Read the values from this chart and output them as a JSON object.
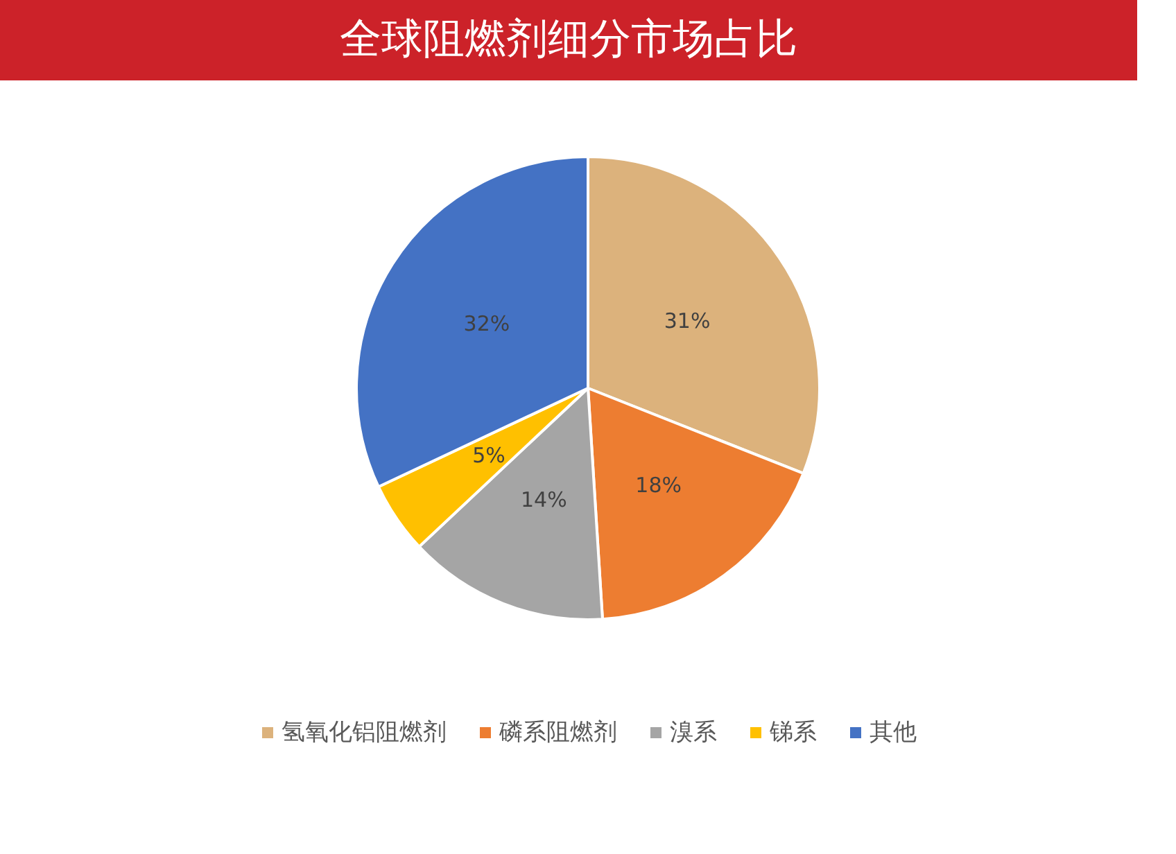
{
  "chart_data": {
    "type": "pie",
    "title": "全球阻燃剂细分市场占比",
    "categories": [
      "氢氧化铝阻燃剂",
      "磷系阻燃剂",
      "溴系",
      "锑系",
      "其他"
    ],
    "values": [
      31,
      18,
      14,
      5,
      32
    ],
    "value_labels": [
      "31%",
      "18%",
      "14%",
      "5%",
      "32%"
    ],
    "colors": [
      "#dcb27c",
      "#ed7d31",
      "#a5a5a5",
      "#ffc000",
      "#4472c4"
    ],
    "legend": "bottom"
  }
}
